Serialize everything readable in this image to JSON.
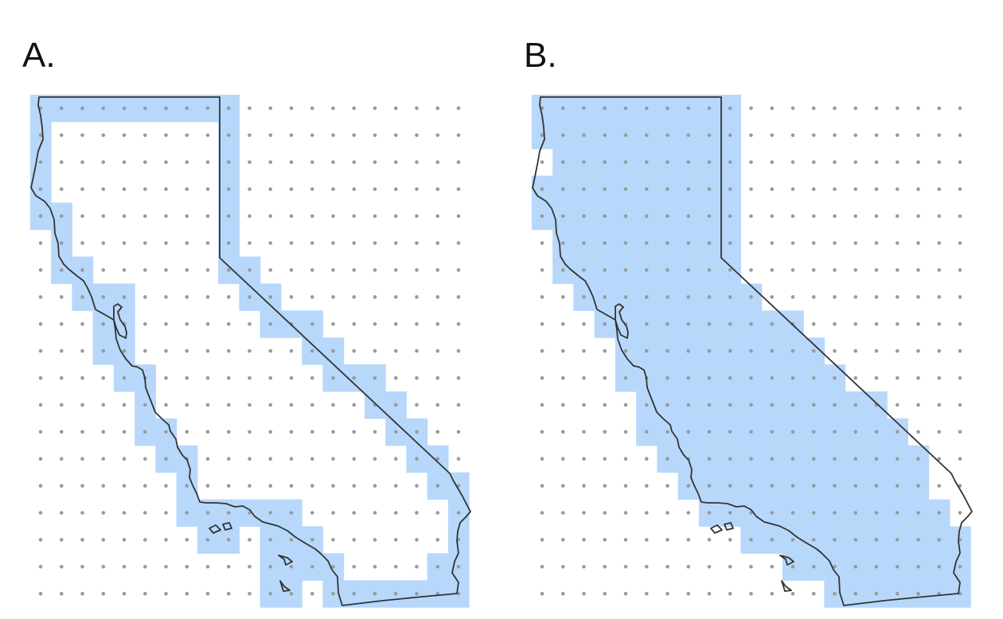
{
  "panels": [
    {
      "label": "A.",
      "mode": "border",
      "description_key": "rasterized-outline"
    },
    {
      "label": "B.",
      "mode": "interior",
      "description_key": "rasterized-fill"
    }
  ],
  "colors": {
    "fill": "#b7d8fb",
    "outline": "#333333",
    "dot": "#9a9a9a",
    "background": "#ffffff"
  },
  "grid": {
    "columns": 21,
    "rows": 19
  },
  "icons": {
    "outline": "california-outline",
    "dots": "grid-dots"
  }
}
